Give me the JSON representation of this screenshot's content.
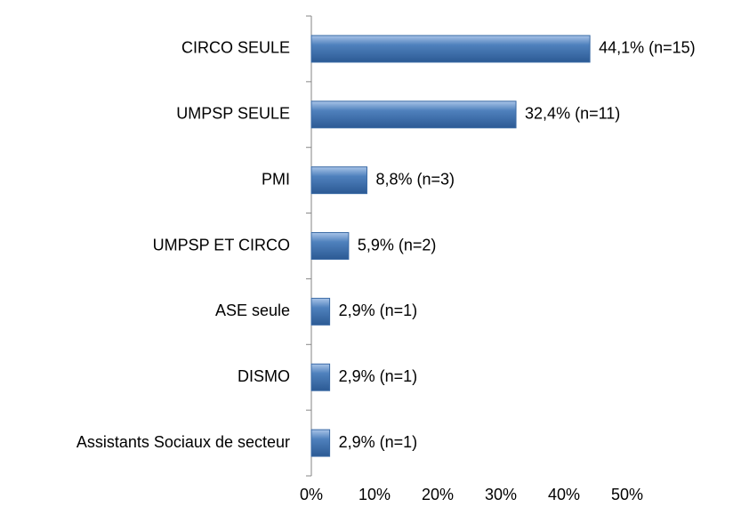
{
  "chart_data": {
    "type": "hbar",
    "categories": [
      "CIRCO SEULE",
      "UMPSP SEULE",
      "PMI",
      "UMPSP ET CIRCO",
      "ASE seule",
      "DISMO",
      "Assistants Sociaux de secteur"
    ],
    "values": [
      44.1,
      32.4,
      8.8,
      5.9,
      2.9,
      2.9,
      2.9
    ],
    "value_labels": [
      "44,1% (n=15)",
      "32,4% (n=11)",
      "8,8% (n=3)",
      "5,9% (n=2)",
      "2,9% (n=1)",
      "2,9% (n=1)",
      "2,9% (n=1)"
    ],
    "color": "#4f81bd",
    "xlim": [
      0,
      50
    ],
    "xticks": [
      {
        "value": 0,
        "label": "0%"
      },
      {
        "value": 10,
        "label": "10%"
      },
      {
        "value": 20,
        "label": "20%"
      },
      {
        "value": 30,
        "label": "30%"
      },
      {
        "value": 40,
        "label": "40%"
      },
      {
        "value": 50,
        "label": "50%"
      }
    ],
    "grid": false
  }
}
